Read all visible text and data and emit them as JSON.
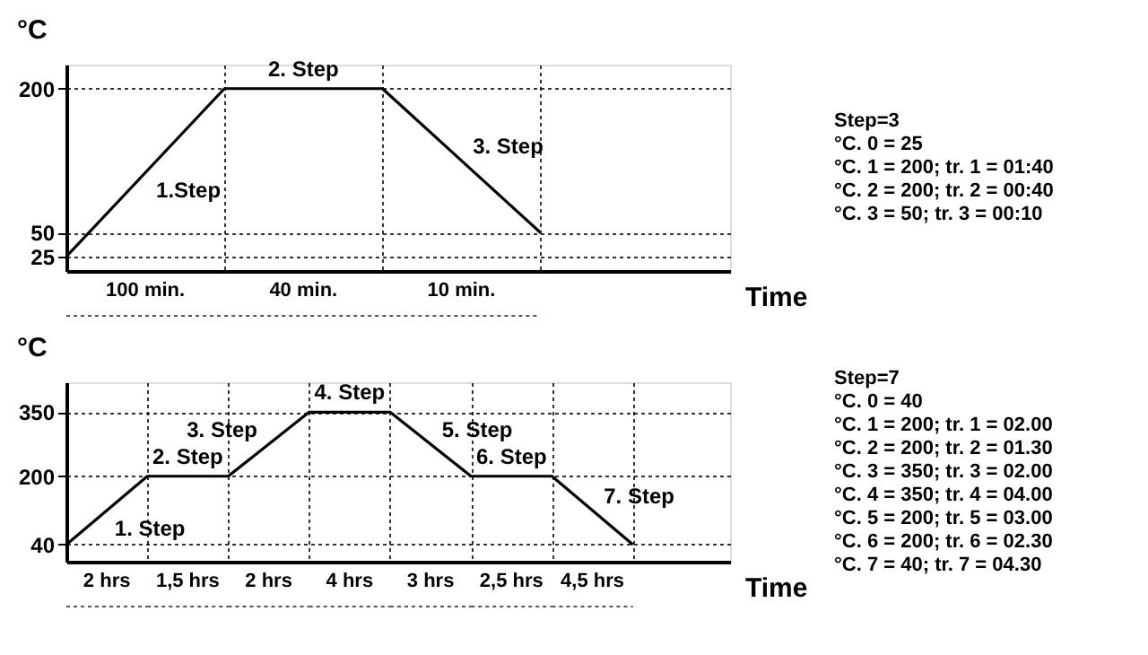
{
  "chart_data": [
    {
      "type": "line",
      "ylabel": "°C",
      "xlabel": "Time",
      "categories": [
        null,
        null,
        null,
        null
      ],
      "series": [
        {
          "color": "#000000",
          "values": [
            25,
            200,
            200,
            50
          ]
        }
      ],
      "ylim": [
        10,
        225
      ],
      "yticks": [
        25,
        50,
        200
      ],
      "grid": true,
      "tick_labels": "y",
      "annotations": [
        "1.Step",
        "2. Step",
        "3. Step",
        "100 min.",
        "40 min.",
        "10 min.",
        "Step=3",
        "°C. 0 = 25",
        "°C. 1 = 200;   tr. 1 = 01:40",
        "°C. 2 = 200;   tr. 2 = 00:40",
        "°C. 3 = 50;     tr. 3 = 00:10"
      ]
    },
    {
      "type": "line",
      "ylabel": "°C",
      "xlabel": "Time",
      "categories": [
        null,
        null,
        null,
        null,
        null,
        null,
        null,
        null
      ],
      "series": [
        {
          "color": "#000000",
          "values": [
            40,
            200,
            200,
            350,
            350,
            200,
            200,
            40
          ]
        }
      ],
      "ylim": [
        0,
        420
      ],
      "yticks": [
        40,
        200,
        350
      ],
      "grid": true,
      "tick_labels": "y",
      "annotations": [
        "1. Step",
        "2. Step",
        "3. Step",
        "4. Step",
        "5. Step",
        "6. Step",
        "7. Step",
        "2 hrs",
        "1,5 hrs",
        "2 hrs",
        "4 hrs",
        "3 hrs",
        "2,5 hrs",
        "4,5 hrs",
        "Step=7",
        "°C. 0 = 40",
        "°C. 1 = 200;  tr. 1 = 02.00",
        "°C. 2 = 200;  tr. 2 = 01.30",
        "°C. 3 = 350;  tr. 3 = 02.00",
        "°C. 4 = 350;  tr. 4 = 04.00",
        "°C. 5 = 200;  tr. 5 = 03.00",
        "°C. 6 = 200;  tr. 6 = 02.30",
        "°C. 7 = 40;    tr. 7 = 04.30"
      ]
    }
  ]
}
